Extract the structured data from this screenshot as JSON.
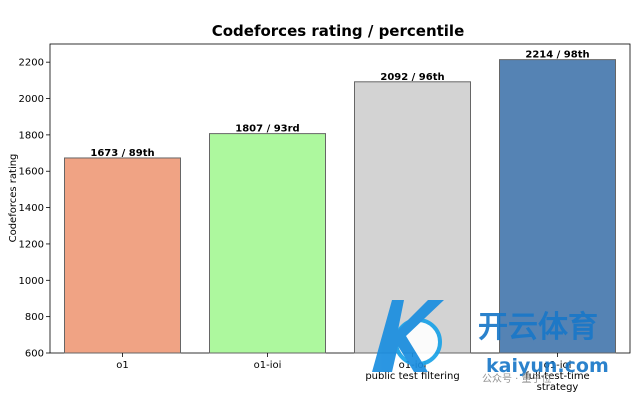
{
  "chart_data": {
    "type": "bar",
    "title": "Codeforces rating / percentile",
    "xlabel": "",
    "ylabel": "Codeforces rating",
    "categories": [
      "o1",
      "o1-ioi",
      "o1-ioi\npublic test filtering",
      "o1-ioi\nfull-test-time\nstrategy"
    ],
    "values": [
      1673,
      1807,
      2092,
      2214
    ],
    "data_labels": [
      "1673 / 89th",
      "1807 / 93rd",
      "2092 / 96th",
      "2214 / 98th"
    ],
    "colors": [
      "#f0a384",
      "#adf89e",
      "#d3d3d3",
      "#5583b4"
    ],
    "ylim": [
      600,
      2300
    ],
    "yticks": [
      600,
      800,
      1000,
      1200,
      1400,
      1600,
      1800,
      2000,
      2200
    ],
    "grid": false,
    "legend": "none"
  },
  "watermark": {
    "brand_cn": "开云体育",
    "brand_url": "kaiyun.com",
    "account": "公众号 · 量子位"
  }
}
